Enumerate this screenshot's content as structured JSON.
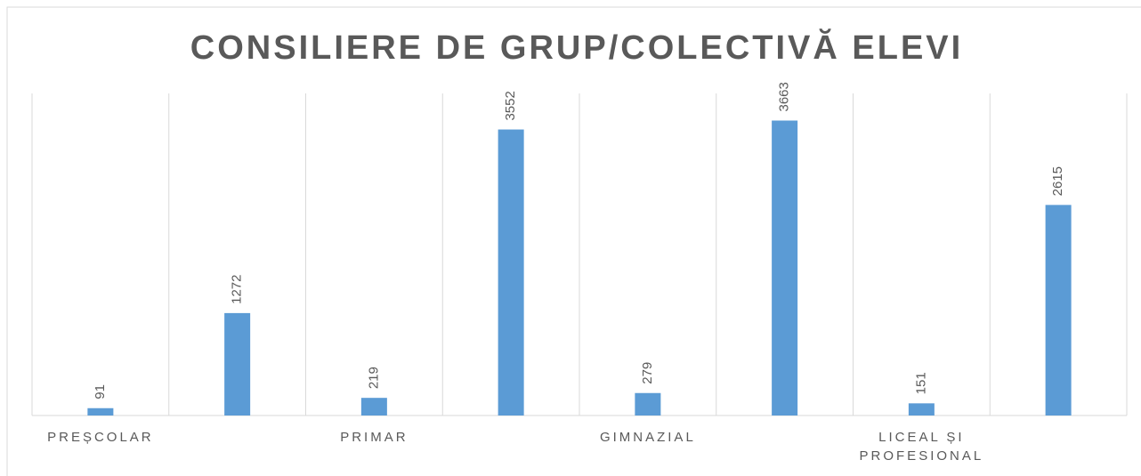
{
  "chart_data": {
    "type": "bar",
    "title": "CONSILIERE DE GRUP/COLECTIVĂ ELEVI",
    "categories": [
      "PREȘCOLAR",
      null,
      "PRIMAR",
      null,
      "GIMNAZIAL",
      null,
      "LICEAL ȘI PROFESIONAL",
      null
    ],
    "values": [
      91,
      1272,
      219,
      3552,
      279,
      3663,
      151,
      2615
    ],
    "color": "#5b9bd5",
    "ylim": [
      0,
      4000
    ],
    "grid": true
  }
}
